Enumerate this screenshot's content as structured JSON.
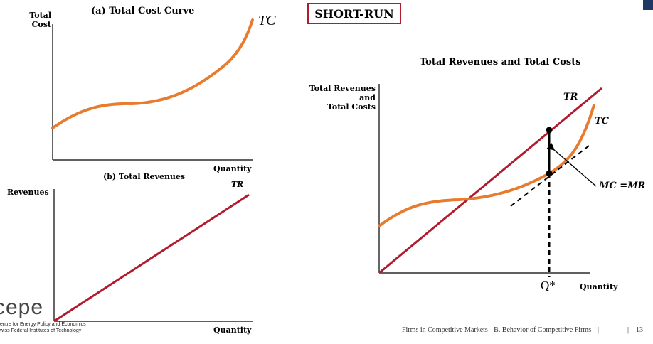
{
  "slide": {
    "badge": "SHORT-RUN",
    "footer_text": "Firms in Competitive Markets - B. Behavior of Competitive Firms",
    "footer_sep1": "|",
    "footer_sep2": "|",
    "page_number": "13",
    "accent_color": "#1f3864",
    "logo": {
      "text": "cepe",
      "line1": "entre for Energy Policy and Economics",
      "line2": "wiss Federal Institutes of Technology"
    }
  },
  "panel_a": {
    "title": "(a) Total Cost Curve",
    "ylabel_line1": "Total",
    "ylabel_line2": "Cost",
    "xlabel": "Quantity",
    "curve_label": "TC"
  },
  "panel_b": {
    "title": "(b) Total Revenues",
    "ylabel": "Revenues",
    "xlabel": "Quantity",
    "line_label": "TR"
  },
  "panel_c": {
    "title": "Total Revenues and Total Costs",
    "ylabel_line1": "Total Revenues",
    "ylabel_line2": "and",
    "ylabel_line3": "Total Costs",
    "xlabel": "Quantity",
    "tr_label": "TR",
    "tc_label": "TC",
    "q_label": "Q*",
    "mc_label": "MC =MR"
  },
  "colors": {
    "tc_curve": "#e87c2e",
    "tr_line": "#b01c2e",
    "badge_border": "#b01c2e"
  }
}
